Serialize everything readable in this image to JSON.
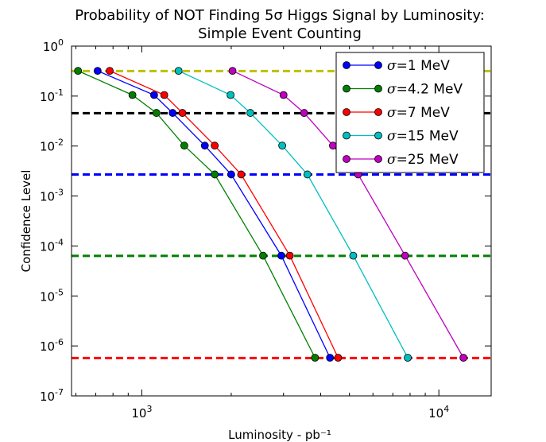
{
  "chart_data": {
    "type": "line",
    "title": [
      "Probability of NOT Finding 5σ Higgs Signal by Luminosity:",
      "Simple Event Counting"
    ],
    "xlabel": "Luminosity - pb⁻¹",
    "ylabel": "Confidence Level",
    "xscale": "log",
    "yscale": "log",
    "xlim": [
      580,
      15000
    ],
    "ylim": [
      1e-07,
      1
    ],
    "x_ticks": [
      {
        "value": 1000,
        "base": "10",
        "exp": "3"
      },
      {
        "value": 10000,
        "base": "10",
        "exp": "4"
      }
    ],
    "y_ticks": [
      {
        "value": 1,
        "base": "10",
        "exp": "0"
      },
      {
        "value": 0.1,
        "base": "10",
        "exp": "-1"
      },
      {
        "value": 0.01,
        "base": "10",
        "exp": "-2"
      },
      {
        "value": 0.001,
        "base": "10",
        "exp": "-3"
      },
      {
        "value": 0.0001,
        "base": "10",
        "exp": "-4"
      },
      {
        "value": 1e-05,
        "base": "10",
        "exp": "-5"
      },
      {
        "value": 1e-06,
        "base": "10",
        "exp": "-6"
      },
      {
        "value": 1e-07,
        "base": "10",
        "exp": "-7"
      }
    ],
    "legend_position": "top-right",
    "reference_lines": [
      {
        "y": 0.3173,
        "color": "#bfbf00"
      },
      {
        "y": 0.0455,
        "color": "#000000"
      },
      {
        "y": 0.0027,
        "color": "#0000ff"
      },
      {
        "y": 6.33e-05,
        "color": "#008000"
      },
      {
        "y": 5.73e-07,
        "color": "#ff0000"
      }
    ],
    "series": [
      {
        "name": "σ=1 MeV",
        "sigma": "=1 MeV",
        "color": "#0000ff",
        "x": [
          710,
          1100,
          1270,
          1630,
          2000,
          2950,
          4300
        ],
        "y": [
          0.32,
          0.105,
          0.046,
          0.0102,
          0.0027,
          6.4e-05,
          5.8e-07
        ]
      },
      {
        "name": "σ=4.2 MeV",
        "sigma": "=4.2 MeV",
        "color": "#008000",
        "x": [
          610,
          930,
          1120,
          1390,
          1760,
          2560,
          3830
        ],
        "y": [
          0.32,
          0.105,
          0.046,
          0.0102,
          0.0027,
          6.4e-05,
          5.8e-07
        ]
      },
      {
        "name": "σ=7 MeV",
        "sigma": "=7 MeV",
        "color": "#ff0000",
        "x": [
          780,
          1190,
          1370,
          1760,
          2160,
          3150,
          4580
        ],
        "y": [
          0.32,
          0.105,
          0.046,
          0.0102,
          0.0027,
          6.4e-05,
          5.8e-07
        ]
      },
      {
        "name": "σ=15 MeV",
        "sigma": "=15 MeV",
        "color": "#00bfbf",
        "x": [
          1330,
          1990,
          2320,
          2970,
          3610,
          5150,
          7860
        ],
        "y": [
          0.32,
          0.105,
          0.046,
          0.0102,
          0.0027,
          6.4e-05,
          5.8e-07
        ]
      },
      {
        "name": "σ=25 MeV",
        "sigma": "=25 MeV",
        "color": "#bf00bf",
        "x": [
          2020,
          3000,
          3520,
          4400,
          5350,
          7700,
          12100
        ],
        "y": [
          0.32,
          0.105,
          0.046,
          0.0102,
          0.0027,
          6.4e-05,
          5.8e-07
        ]
      }
    ]
  }
}
